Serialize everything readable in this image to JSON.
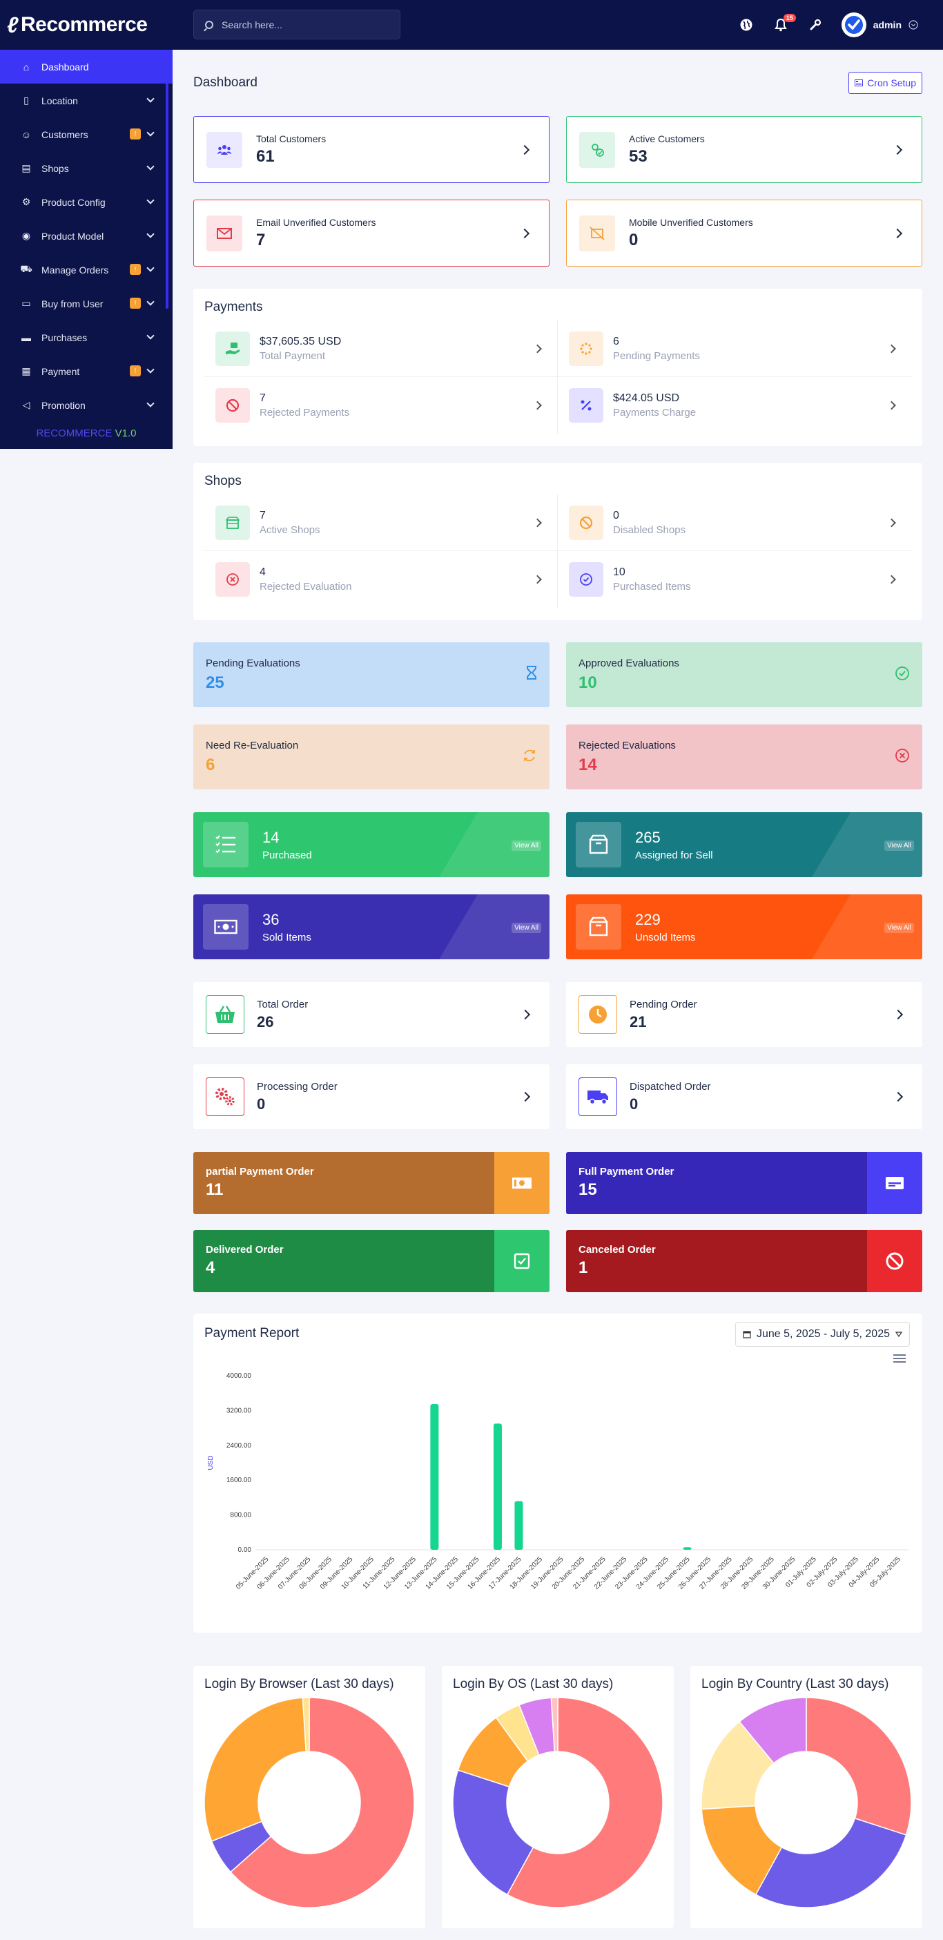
{
  "app": {
    "name": "Recommerce"
  },
  "header": {
    "search_placeholder": "Search here...",
    "notification_count": "15",
    "user": "admin"
  },
  "sidebar": {
    "items": [
      {
        "label": "Dashboard",
        "icon": "home-icon",
        "badge": ""
      },
      {
        "label": "Location",
        "icon": "map-icon",
        "badge": ""
      },
      {
        "label": "Customers",
        "icon": "users-icon",
        "badge": "!"
      },
      {
        "label": "Shops",
        "icon": "shop-icon",
        "badge": ""
      },
      {
        "label": "Product Config",
        "icon": "config-icon",
        "badge": ""
      },
      {
        "label": "Product Model",
        "icon": "model-icon",
        "badge": ""
      },
      {
        "label": "Manage Orders",
        "icon": "cart-icon",
        "badge": "!"
      },
      {
        "label": "Buy from User",
        "icon": "wallet-icon",
        "badge": "!"
      },
      {
        "label": "Purchases",
        "icon": "purchases-icon",
        "badge": ""
      },
      {
        "label": "Payment",
        "icon": "payment-icon",
        "badge": "!"
      },
      {
        "label": "Promotion",
        "icon": "megaphone-icon",
        "badge": ""
      }
    ],
    "version_name": "RECOMMERCE",
    "version_num": "V1.0"
  },
  "page": {
    "title": "Dashboard",
    "cron_label": "Cron Setup"
  },
  "customers": [
    {
      "label": "Total Customers",
      "value": "61",
      "color": "#4a3ff5",
      "bg": "#ebe9ff"
    },
    {
      "label": "Active Customers",
      "value": "53",
      "color": "#2fbf71",
      "bg": "#dff5e9"
    },
    {
      "label": "Email Unverified Customers",
      "value": "7",
      "color": "#e33b4b",
      "bg": "#fde3e5"
    },
    {
      "label": "Mobile Unverified Customers",
      "value": "0",
      "color": "#f7a036",
      "bg": "#fdeedd"
    }
  ],
  "payments": {
    "title": "Payments",
    "items": [
      {
        "value": "$37,605.35 USD",
        "label": "Total Payment",
        "color": "#2fbf71",
        "bg": "#dff5e9"
      },
      {
        "value": "6",
        "label": "Pending Payments",
        "color": "#f7a036",
        "bg": "#fdeedd"
      },
      {
        "value": "7",
        "label": "Rejected Payments",
        "color": "#e33b4b",
        "bg": "#fde3e5"
      },
      {
        "value": "$424.05 USD",
        "label": "Payments Charge",
        "color": "#4a3ff5",
        "bg": "#e3e1ff"
      }
    ]
  },
  "shops": {
    "title": "Shops",
    "items": [
      {
        "value": "7",
        "label": "Active Shops",
        "color": "#2fbf71",
        "bg": "#dff5e9"
      },
      {
        "value": "0",
        "label": "Disabled Shops",
        "color": "#f7a036",
        "bg": "#fdeedd"
      },
      {
        "value": "4",
        "label": "Rejected Evaluation",
        "color": "#e33b4b",
        "bg": "#fde3e5"
      },
      {
        "value": "10",
        "label": "Purchased Items",
        "color": "#4a3ff5",
        "bg": "#e3e1ff"
      }
    ]
  },
  "evaluations": [
    {
      "label": "Pending Evaluations",
      "value": "25",
      "bg": "#c3dcf7",
      "color": "#2f8fe6"
    },
    {
      "label": "Approved Evaluations",
      "value": "10",
      "bg": "#c3e8d4",
      "color": "#2fbf71"
    },
    {
      "label": "Need Re-Evaluation",
      "value": "6",
      "bg": "#f5dfcc",
      "color": "#f7a036"
    },
    {
      "label": "Rejected Evaluations",
      "value": "14",
      "bg": "#f2c3c7",
      "color": "#e33b4b"
    }
  ],
  "items_stats": [
    {
      "value": "14",
      "label": "Purchased",
      "bg": "#2ec66e",
      "view": "View All"
    },
    {
      "value": "265",
      "label": "Assigned for Sell",
      "bg": "#177b84",
      "view": "View All"
    },
    {
      "value": "36",
      "label": "Sold Items",
      "bg": "#3a2fb0",
      "view": "View All"
    },
    {
      "value": "229",
      "label": "Unsold Items",
      "bg": "#ff540d",
      "view": "View All"
    }
  ],
  "orders": [
    {
      "label": "Total Order",
      "value": "26",
      "color": "#2fbf71"
    },
    {
      "label": "Pending Order",
      "value": "21",
      "color": "#f7a036"
    },
    {
      "label": "Processing Order",
      "value": "0",
      "color": "#e33b4b"
    },
    {
      "label": "Dispatched Order",
      "value": "0",
      "color": "#4a3ff5"
    }
  ],
  "order_status": [
    {
      "label": "partial Payment Order",
      "value": "11",
      "bg": "#b56d2f",
      "box": "#f7a036"
    },
    {
      "label": "Full Payment Order",
      "value": "15",
      "bg": "#3727b8",
      "box": "#4a3ff5"
    },
    {
      "label": "Delivered Order",
      "value": "4",
      "bg": "#1f8c46",
      "box": "#2ec66e"
    },
    {
      "label": "Canceled Order",
      "value": "1",
      "bg": "#a51a1e",
      "box": "#e9292d"
    }
  ],
  "report": {
    "title": "Payment Report",
    "date_range": "June 5, 2025 - July 5, 2025"
  },
  "chart_data": [
    {
      "type": "bar",
      "title": "Payment Report",
      "ylabel": "USD",
      "ylim": [
        0,
        4000
      ],
      "yticks": [
        "0.00",
        "800.00",
        "1600.00",
        "2400.00",
        "3200.00",
        "4000.00"
      ],
      "categories": [
        "05-June-2025",
        "06-June-2025",
        "07-June-2025",
        "08-June-2025",
        "09-June-2025",
        "10-June-2025",
        "11-June-2025",
        "12-June-2025",
        "13-June-2025",
        "14-June-2025",
        "15-June-2025",
        "16-June-2025",
        "17-June-2025",
        "18-June-2025",
        "19-June-2025",
        "20-June-2025",
        "21-June-2025",
        "22-June-2025",
        "23-June-2025",
        "24-June-2025",
        "25-June-2025",
        "26-June-2025",
        "27-June-2025",
        "28-June-2025",
        "29-June-2025",
        "30-June-2025",
        "01-July-2025",
        "02-July-2025",
        "03-July-2025",
        "04-July-2025",
        "05-July-2025"
      ],
      "values": [
        0,
        0,
        0,
        0,
        0,
        0,
        0,
        0,
        3350,
        0,
        0,
        2900,
        1120,
        0,
        0,
        0,
        0,
        0,
        0,
        0,
        60,
        0,
        0,
        0,
        0,
        0,
        0,
        0,
        0,
        0,
        0
      ],
      "color": "#14d68e"
    },
    {
      "type": "pie",
      "title": "Login By Browser (Last 30 days)",
      "values": [
        63.5,
        5.5,
        30,
        1
      ],
      "colors": [
        "#ff7a7a",
        "#6c5ce7",
        "#ffa533",
        "#ffe38f"
      ]
    },
    {
      "type": "pie",
      "title": "Login By OS (Last 30 days)",
      "values": [
        58,
        22,
        10,
        4,
        5,
        1
      ],
      "colors": [
        "#ff7a7a",
        "#6c5ce7",
        "#ffa533",
        "#ffe38f",
        "#d77ef0",
        "#ffc2c2"
      ]
    },
    {
      "type": "pie",
      "title": "Login By Country (Last 30 days)",
      "values": [
        30,
        28,
        16,
        15,
        11
      ],
      "colors": [
        "#ff7a7a",
        "#6c5ce7",
        "#ffa533",
        "#ffe8a8",
        "#d77ef0"
      ]
    }
  ]
}
